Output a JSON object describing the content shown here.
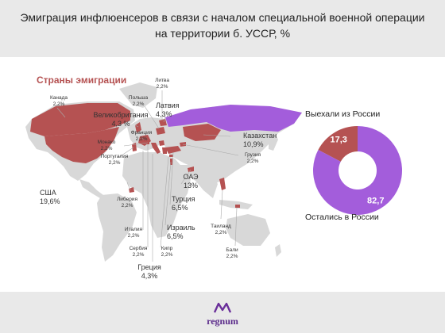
{
  "title": "Эмиграция инфлюенсеров в связи с началом специальной военной операции на территории б. УССР, %",
  "map_title": "Страны эмиграции",
  "brand": "regnum",
  "colors": {
    "highlight": "#b55252",
    "purple": "#a35ddb",
    "land": "#d8d8d8",
    "header": "#e9e9e9"
  },
  "chart_data": [
    {
      "type": "map",
      "title": "Страны эмиграции",
      "countries": [
        {
          "name": "Литва",
          "value": "2,2%"
        },
        {
          "name": "Канада",
          "value": "2,2%"
        },
        {
          "name": "Польша",
          "value": "2,2%"
        },
        {
          "name": "Латвия",
          "value": "4,3%"
        },
        {
          "name": "Великобритания",
          "value": "4,3 %"
        },
        {
          "name": "Франция",
          "value": "2,2%"
        },
        {
          "name": "Монако",
          "value": "2,2%"
        },
        {
          "name": "Португалия",
          "value": "2,2%"
        },
        {
          "name": "Казахстан",
          "value": "10,9%"
        },
        {
          "name": "Грузия",
          "value": "2,2%"
        },
        {
          "name": "США",
          "value": "19,6%"
        },
        {
          "name": "ОАЭ",
          "value": "13%"
        },
        {
          "name": "Либерия",
          "value": "2,2%"
        },
        {
          "name": "Турция",
          "value": "6,5%"
        },
        {
          "name": "Италия",
          "value": "2,2%"
        },
        {
          "name": "Израиль",
          "value": "6,5%"
        },
        {
          "name": "Таиланд",
          "value": "2,2%"
        },
        {
          "name": "Сербия",
          "value": "2,2%"
        },
        {
          "name": "Кипр",
          "value": "2,2%"
        },
        {
          "name": "Бали",
          "value": "2,2%"
        },
        {
          "name": "Греция",
          "value": "4,3%"
        }
      ]
    },
    {
      "type": "pie",
      "slices": [
        {
          "label": "Выехали из России",
          "value": 17.3,
          "display": "17,3",
          "color": "#b55252"
        },
        {
          "label": "Остались в России",
          "value": 82.7,
          "display": "82,7",
          "color": "#a35ddb"
        }
      ]
    }
  ]
}
